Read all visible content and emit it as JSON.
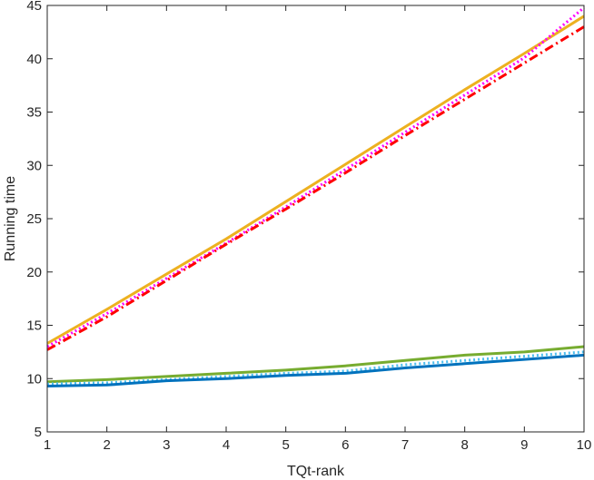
{
  "chart_data": {
    "type": "line",
    "xlabel": "TQt-rank",
    "ylabel": "Running time",
    "xlim": [
      1,
      10
    ],
    "ylim": [
      5,
      45
    ],
    "xticks": [
      "1",
      "2",
      "3",
      "4",
      "5",
      "6",
      "7",
      "8",
      "9",
      "10"
    ],
    "yticks": [
      "5",
      "10",
      "15",
      "20",
      "25",
      "30",
      "35",
      "40",
      "45"
    ],
    "grid": false,
    "legend": "none",
    "x": [
      1,
      2,
      3,
      4,
      5,
      6,
      7,
      8,
      9,
      10
    ],
    "series": [
      {
        "color": "#EDB120",
        "style": "solid",
        "values": [
          13.3,
          16.5,
          19.8,
          23.1,
          26.6,
          30.1,
          33.6,
          37.1,
          40.5,
          44.0
        ]
      },
      {
        "color": "#FF00FF",
        "style": "dotted",
        "values": [
          13.0,
          16.1,
          19.4,
          22.7,
          26.1,
          29.6,
          33.1,
          36.6,
          40.1,
          44.8
        ]
      },
      {
        "color": "#FF0000",
        "style": "dashdot",
        "values": [
          12.7,
          15.8,
          19.2,
          22.6,
          25.9,
          29.3,
          32.8,
          36.2,
          39.6,
          43.0
        ]
      },
      {
        "color": "#77AC30",
        "style": "solid",
        "values": [
          9.7,
          9.9,
          10.2,
          10.5,
          10.8,
          11.2,
          11.7,
          12.2,
          12.5,
          13.0
        ]
      },
      {
        "color": "#4DBEEE",
        "style": "dotted",
        "values": [
          9.5,
          9.6,
          9.9,
          10.2,
          10.5,
          10.7,
          11.3,
          11.7,
          12.1,
          12.5
        ]
      },
      {
        "color": "#0072BD",
        "style": "solid",
        "values": [
          9.3,
          9.4,
          9.8,
          10.0,
          10.3,
          10.5,
          11.0,
          11.4,
          11.8,
          12.2
        ]
      }
    ]
  }
}
